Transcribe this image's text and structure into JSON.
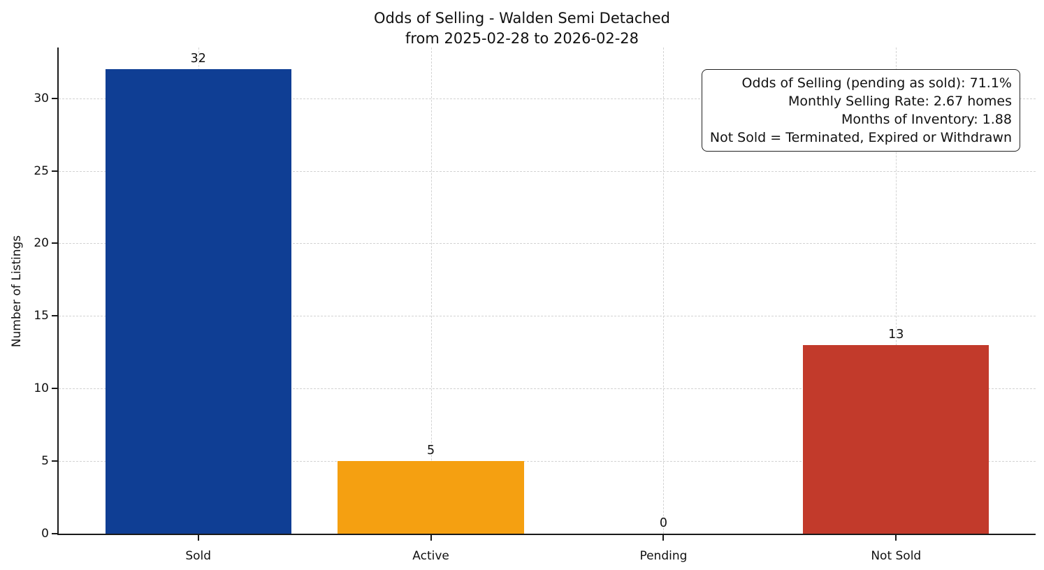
{
  "chart_data": {
    "type": "bar",
    "title": "Odds of Selling - Walden Semi Detached",
    "subtitle": "from 2025-02-28 to 2026-02-28",
    "ylabel": "Number of Listings",
    "categories": [
      "Sold",
      "Active",
      "Pending",
      "Not Sold"
    ],
    "values": [
      32,
      5,
      0,
      13
    ],
    "bar_colors": [
      "#0f3e94",
      "#f5a011",
      null,
      "#c23a2b"
    ],
    "yticks": [
      0,
      5,
      10,
      15,
      20,
      25,
      30
    ],
    "ylim": [
      0,
      33.5
    ],
    "grid": "dashed, both axes",
    "legend_position": "none",
    "annotation_lines": [
      "Odds of Selling (pending as sold): 71.1%",
      "Monthly Selling Rate: 2.67 homes",
      "Months of Inventory: 1.88",
      "Not Sold = Terminated, Expired or Withdrawn"
    ]
  }
}
